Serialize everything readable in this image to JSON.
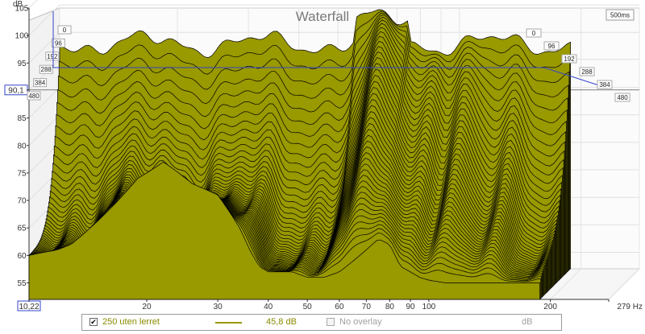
{
  "chart_data": {
    "type": "waterfall",
    "title": "Waterfall",
    "y_unit": "dB",
    "x_unit": "Hz",
    "y_ticks": [
      "105",
      "100",
      "95",
      "90,1",
      "85",
      "80",
      "75",
      "70",
      "65",
      "60",
      "55"
    ],
    "y_tick_values": [
      105,
      100,
      95,
      90.1,
      85,
      80,
      75,
      70,
      65,
      60,
      55
    ],
    "x_ticks": [
      "10,22",
      "20",
      "30",
      "40",
      "50",
      "60",
      "70",
      "80",
      "90",
      "100",
      "200",
      "279 Hz"
    ],
    "x_tick_values": [
      10.22,
      20,
      30,
      40,
      50,
      60,
      70,
      80,
      90,
      100,
      200,
      279
    ],
    "xlim": [
      10.22,
      279
    ],
    "ylim": [
      52,
      105
    ],
    "x_scale": "log",
    "time_unit": "ms",
    "time_range_label": "500ms",
    "time_ticks": [
      "0",
      "96",
      "192",
      "288",
      "384",
      "480"
    ],
    "time_tick_values": [
      0,
      96,
      192,
      288,
      384,
      480
    ],
    "cursor_level_db": 90.1,
    "grid": true,
    "series": [
      {
        "name": "250 uten lerret",
        "color": "#999900",
        "outline_color": "#000000",
        "approx_front_slice_x_hz": [
          10.22,
          11,
          12,
          13,
          14,
          15,
          16,
          17,
          18,
          19,
          20,
          21,
          22,
          23,
          24,
          25,
          26,
          28,
          30,
          32,
          34,
          36,
          38,
          40,
          43,
          46,
          50,
          55,
          60,
          65,
          70,
          75,
          80,
          85,
          90,
          95,
          100,
          110,
          120,
          130,
          140,
          150,
          160,
          170,
          180,
          190,
          200,
          220,
          240,
          260,
          279
        ],
        "approx_front_slice_db": [
          60,
          60.5,
          61,
          62,
          64,
          66,
          68,
          70,
          72,
          74,
          75,
          76,
          77,
          76,
          75,
          74,
          73,
          72,
          71,
          68,
          65,
          61,
          58,
          57,
          57,
          57,
          56,
          56,
          57,
          59,
          61,
          63,
          62,
          58,
          57,
          56,
          55.5,
          55,
          55,
          55,
          55,
          55,
          55,
          55,
          55,
          55,
          55,
          55,
          55,
          55,
          55
        ]
      }
    ]
  },
  "legend": {
    "item1_checked": "✔",
    "item1_label": "250 uten lerret",
    "item1_value": "45,8 dB",
    "item1_color": "#999900",
    "item2_label": "No overlay",
    "item2_unit": "dB"
  }
}
